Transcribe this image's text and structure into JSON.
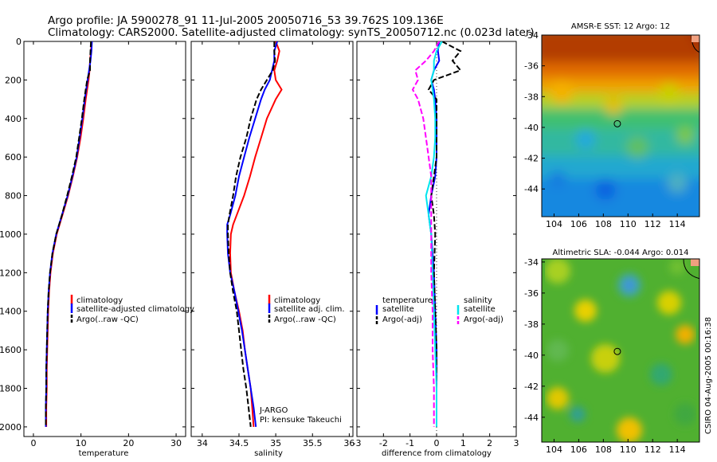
{
  "title_line1": "Argo profile: JA 5900278_91 11-Jul-2005 20050716_53 39.762S 109.136E",
  "title_line2": "Climatology: CARS2000. Satellite-adjusted climatology: synTS_20050712.nc (0.023d later)",
  "side_label": "CSIRO 04-Aug-2005 00:16:38",
  "colors": {
    "climatology": "#ff0000",
    "satellite": "#0000ff",
    "argo": "#000000",
    "salinity": "#00e5ee",
    "argo_sal_adj": "#ff00ff"
  },
  "chart_data": [
    {
      "type": "line",
      "panel": "temperature",
      "xlabel": "temperature",
      "xlim": [
        -2,
        32
      ],
      "ylim": [
        0,
        2050
      ],
      "y_inverted": true,
      "xticks": [
        0,
        10,
        20,
        30
      ],
      "yticks": [
        0,
        200,
        400,
        600,
        800,
        1000,
        1200,
        1400,
        1600,
        1800,
        2000
      ],
      "legend": {
        "position": "bottom-right",
        "entries": [
          "climatology",
          "satellite-adjusted climatology",
          "Argo(..raw -QC)"
        ]
      },
      "depth": [
        0,
        50,
        100,
        150,
        200,
        300,
        400,
        500,
        600,
        700,
        800,
        900,
        1000,
        1100,
        1200,
        1300,
        1400,
        1500,
        1600,
        1700,
        1800,
        1900,
        2000
      ],
      "series": [
        {
          "name": "climatology",
          "color": "#ff0000",
          "style": "solid",
          "values": [
            12.2,
            12.1,
            11.9,
            11.8,
            11.6,
            11.0,
            10.5,
            9.9,
            9.2,
            8.3,
            7.3,
            6.1,
            4.9,
            4.1,
            3.6,
            3.3,
            3.1,
            3.0,
            2.9,
            2.8,
            2.8,
            2.7,
            2.7
          ]
        },
        {
          "name": "satellite-adjusted climatology",
          "color": "#0000ff",
          "style": "solid",
          "values": [
            12.3,
            12.2,
            12.0,
            11.7,
            11.4,
            10.8,
            10.3,
            9.7,
            9.1,
            8.2,
            7.2,
            6.0,
            4.8,
            4.0,
            3.5,
            3.2,
            3.0,
            2.9,
            2.8,
            2.7,
            2.7,
            2.6,
            2.6
          ]
        },
        {
          "name": "Argo(..raw -QC)",
          "color": "#000000",
          "style": "dashed",
          "values": [
            12.1,
            12.0,
            11.9,
            11.9,
            11.3,
            10.7,
            10.2,
            9.6,
            9.0,
            8.1,
            7.1,
            6.0,
            4.8,
            4.0,
            3.5,
            3.2,
            3.0,
            2.9,
            2.8,
            2.7,
            2.7,
            2.6,
            2.6
          ]
        }
      ]
    },
    {
      "type": "line",
      "panel": "salinity",
      "xlabel": "salinity",
      "xlim": [
        33.85,
        36.05
      ],
      "ylim": [
        0,
        2050
      ],
      "y_inverted": true,
      "xticks": [
        34,
        34.5,
        35,
        35.5,
        36
      ],
      "legend": {
        "position": "bottom-right",
        "entries": [
          "climatology",
          "satellite adj. clim.",
          "Argo(..raw -QC)"
        ]
      },
      "annotations": [
        "J-ARGO",
        "PI: kensuke Takeuchi"
      ],
      "depth": [
        0,
        50,
        100,
        150,
        200,
        250,
        300,
        400,
        500,
        600,
        700,
        800,
        900,
        950,
        1000,
        1100,
        1200,
        1300,
        1400,
        1500,
        1600,
        1700,
        1800,
        1900,
        2000
      ],
      "series": [
        {
          "name": "climatology",
          "color": "#ff0000",
          "style": "solid",
          "values": [
            35.0,
            35.05,
            35.02,
            34.98,
            35.0,
            35.08,
            35.0,
            34.88,
            34.8,
            34.72,
            34.65,
            34.57,
            34.47,
            34.42,
            34.39,
            34.38,
            34.39,
            34.44,
            34.5,
            34.55,
            34.58,
            34.62,
            34.66,
            34.68,
            34.7
          ]
        },
        {
          "name": "satellite adj. clim.",
          "color": "#0000ff",
          "style": "solid",
          "values": [
            35.02,
            34.98,
            34.98,
            34.95,
            34.92,
            34.85,
            34.8,
            34.72,
            34.64,
            34.57,
            34.5,
            34.45,
            34.38,
            34.34,
            34.34,
            34.35,
            34.38,
            34.44,
            34.49,
            34.54,
            34.58,
            34.62,
            34.66,
            34.7,
            34.73
          ]
        },
        {
          "name": "Argo(..raw -QC)",
          "color": "#000000",
          "style": "dashed",
          "values": [
            34.98,
            34.98,
            34.99,
            34.96,
            34.88,
            34.8,
            34.74,
            34.66,
            34.6,
            34.52,
            34.46,
            34.42,
            34.37,
            34.35,
            34.35,
            34.36,
            34.38,
            34.42,
            34.47,
            34.5,
            34.53,
            34.56,
            34.6,
            34.63,
            34.66
          ]
        }
      ]
    },
    {
      "type": "line",
      "panel": "difference",
      "xlabel": "difference from climatology",
      "xlim": [
        -3,
        3
      ],
      "ylim": [
        0,
        2050
      ],
      "y_inverted": true,
      "xticks": [
        -3,
        -2,
        -1,
        0,
        1,
        2,
        3
      ],
      "legend": {
        "position": "bottom",
        "groups": [
          [
            "temperature",
            "satellite",
            "Argo(-adj)"
          ],
          [
            "salinity",
            "satellite",
            "Argo(-adj)"
          ]
        ]
      },
      "depth": [
        0,
        50,
        100,
        150,
        200,
        250,
        300,
        400,
        500,
        600,
        700,
        800,
        900,
        1000,
        1200,
        1400,
        1600,
        1800,
        2000
      ],
      "series": [
        {
          "name": "satellite",
          "group": "temperature",
          "color": "#0000ff",
          "style": "solid",
          "values": [
            0.1,
            0.05,
            0.1,
            -0.1,
            -0.2,
            -0.1,
            -0.05,
            0.0,
            0.0,
            0.0,
            -0.05,
            -0.2,
            -0.3,
            -0.2,
            -0.1,
            -0.05,
            0.0,
            0.0,
            0.0
          ]
        },
        {
          "name": "Argo(-adj)",
          "group": "temperature",
          "color": "#000000",
          "style": "dashed",
          "values": [
            0.2,
            0.9,
            0.6,
            0.9,
            -0.1,
            -0.3,
            0.0,
            0.0,
            0.0,
            0.0,
            -0.1,
            -0.2,
            -0.1,
            -0.05,
            -0.1,
            -0.05,
            0.0,
            0.0,
            0.0
          ]
        },
        {
          "name": "satellite",
          "group": "salinity",
          "color": "#00e5ee",
          "style": "solid",
          "values": [
            0.2,
            0.0,
            -0.1,
            -0.1,
            -0.2,
            -0.15,
            -0.1,
            -0.05,
            -0.05,
            -0.1,
            -0.2,
            -0.4,
            -0.3,
            -0.2,
            -0.15,
            -0.1,
            -0.05,
            0.0,
            0.0
          ]
        },
        {
          "name": "Argo(-adj)",
          "group": "salinity",
          "color": "#ff00ff",
          "style": "dashed",
          "values": [
            0.1,
            -0.1,
            -0.4,
            -0.8,
            -0.7,
            -0.9,
            -0.7,
            -0.5,
            -0.4,
            -0.3,
            -0.2,
            -0.2,
            -0.2,
            -0.2,
            -0.2,
            -0.15,
            -0.15,
            -0.1,
            -0.1
          ]
        }
      ]
    },
    {
      "type": "heatmap",
      "panel": "sst-map",
      "title": "AMSR-E SST: 12 Argo: 12",
      "xlim": [
        103,
        115.8
      ],
      "ylim": [
        -45.8,
        -34
      ],
      "xticks": [
        104,
        106,
        108,
        110,
        112,
        114
      ],
      "yticks": [
        -34,
        -36,
        -38,
        -40,
        -42,
        -44
      ],
      "marker": {
        "lon": 109.136,
        "lat": -39.762
      }
    },
    {
      "type": "heatmap",
      "panel": "sla-map",
      "title": "Altimetric SLA: -0.044 Argo: 0.014",
      "xlim": [
        103,
        115.8
      ],
      "ylim": [
        -45.6,
        -33.8
      ],
      "xticks": [
        104,
        106,
        108,
        110,
        112,
        114
      ],
      "yticks": [
        -34,
        -36,
        -38,
        -40,
        -42,
        -44
      ],
      "marker": {
        "lon": 109.136,
        "lat": -39.762
      }
    }
  ]
}
